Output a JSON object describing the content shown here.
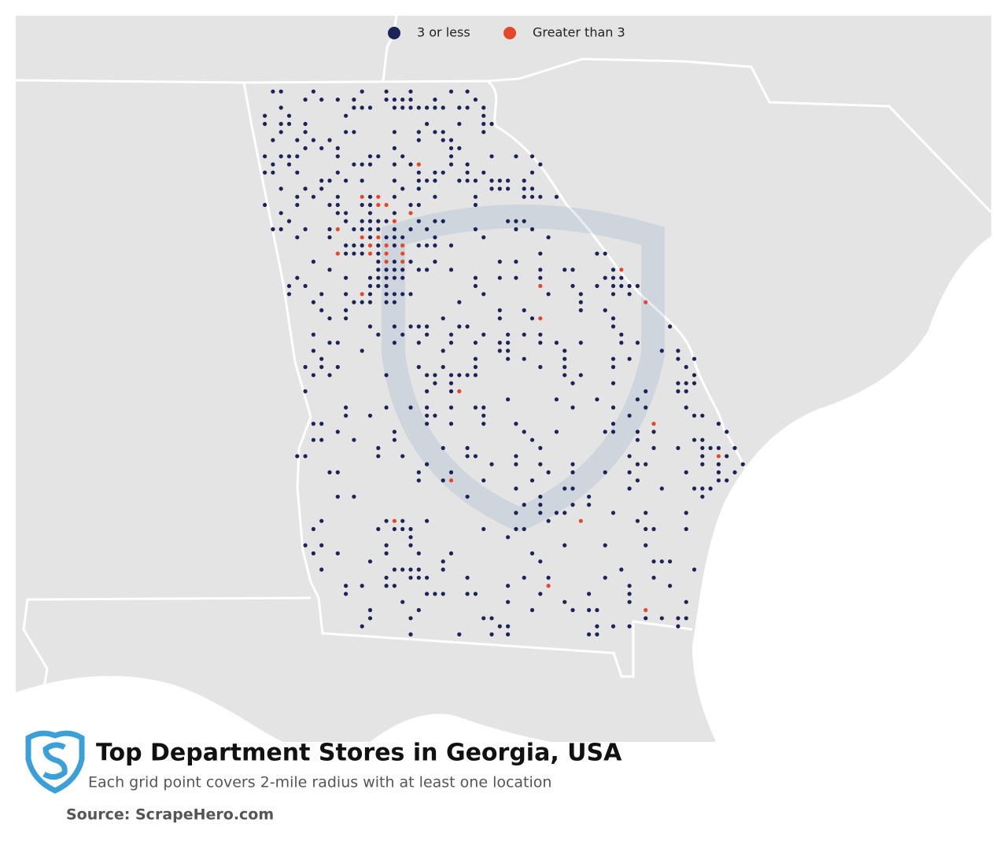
{
  "title": "Top Department Stores in Georgia, USA",
  "subtitle": "Each grid point covers 2-mile radius with at least one location",
  "source": "Source: ScrapeHero.com",
  "legend": [
    {
      "name": "3 or less",
      "color": "#1b2359"
    },
    {
      "name": "Greater than 3",
      "color": "#e4472a"
    }
  ]
}
